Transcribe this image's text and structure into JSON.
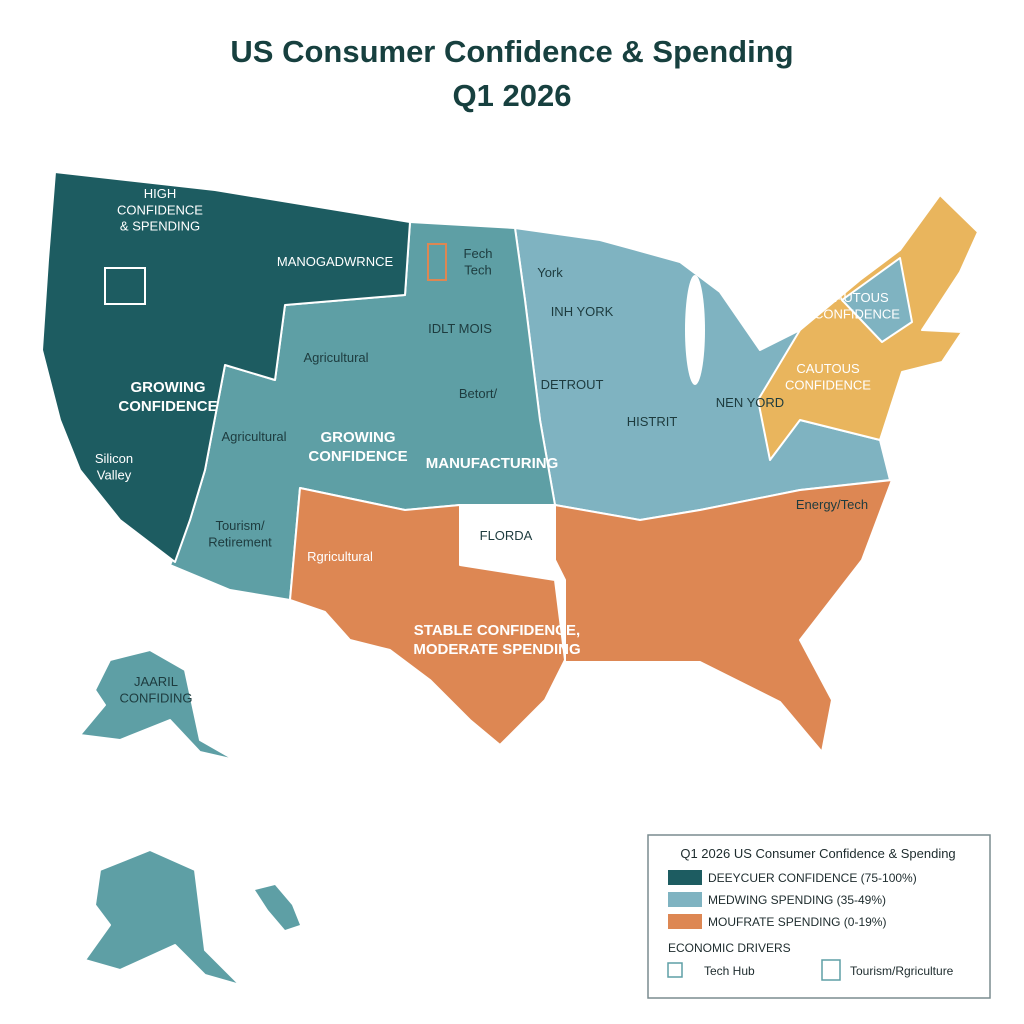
{
  "header": {
    "title_lines": [
      "US Consumer Confidence & Spending",
      "Q1 2026"
    ]
  },
  "map": {
    "regions": [
      {
        "lines": [
          "HIGH",
          "CONFIDENCE",
          "& SPENDING"
        ]
      },
      {
        "lines": [
          "MANOGADWRNCE"
        ]
      },
      {
        "lines": [
          "Fech",
          "Tech"
        ]
      },
      {
        "lines": [
          "York"
        ]
      },
      {
        "lines": [
          "INH YORK"
        ]
      },
      {
        "lines": [
          "IDLT MOIS"
        ]
      },
      {
        "lines": [
          "Agricultural"
        ]
      },
      {
        "lines": [
          "GROWING",
          "CONFIDENCE"
        ]
      },
      {
        "lines": [
          "Agricultural"
        ]
      },
      {
        "lines": [
          "GROWING",
          "CONFIDENCE"
        ]
      },
      {
        "lines": [
          "Silicon",
          "Valley"
        ]
      },
      {
        "lines": [
          "Betort/"
        ]
      },
      {
        "lines": [
          "DETROUT"
        ]
      },
      {
        "lines": [
          "HISTRIT"
        ]
      },
      {
        "lines": [
          "NEN YORD"
        ]
      },
      {
        "lines": [
          "CAUTOUS",
          "CONFIDENCE"
        ]
      },
      {
        "lines": [
          "CAUTOUS",
          "CONFIDENCE"
        ]
      },
      {
        "lines": [
          "MANUFACTURING"
        ]
      },
      {
        "lines": [
          "Tourism/",
          "Retirement"
        ]
      },
      {
        "lines": [
          "Rgricultural"
        ]
      },
      {
        "lines": [
          "FLORDA"
        ]
      },
      {
        "lines": [
          "Energy/Tech"
        ]
      },
      {
        "lines": [
          "STABLE CONFIDENCE,",
          "MODERATE SPENDING"
        ]
      },
      {
        "lines": [
          "JAARIL",
          "CONFIDING"
        ]
      }
    ]
  },
  "legend": {
    "title": "Q1 2026 US Consumer Confidence & Spending",
    "items": [
      {
        "label": "DEEYCUER CONFIDENCE (75-100%)",
        "color": "#1d5c61"
      },
      {
        "label": "MEDWING SPENDING (35-49%)",
        "color": "#7fb3c1"
      },
      {
        "label": "MOUFRATE SPENDING (0-19%)",
        "color": "#dd8753"
      }
    ],
    "drivers_title": "ECONOMIC DRIVERS",
    "drivers": [
      "Tech Hub",
      "Tourism/Rgriculture"
    ]
  }
}
